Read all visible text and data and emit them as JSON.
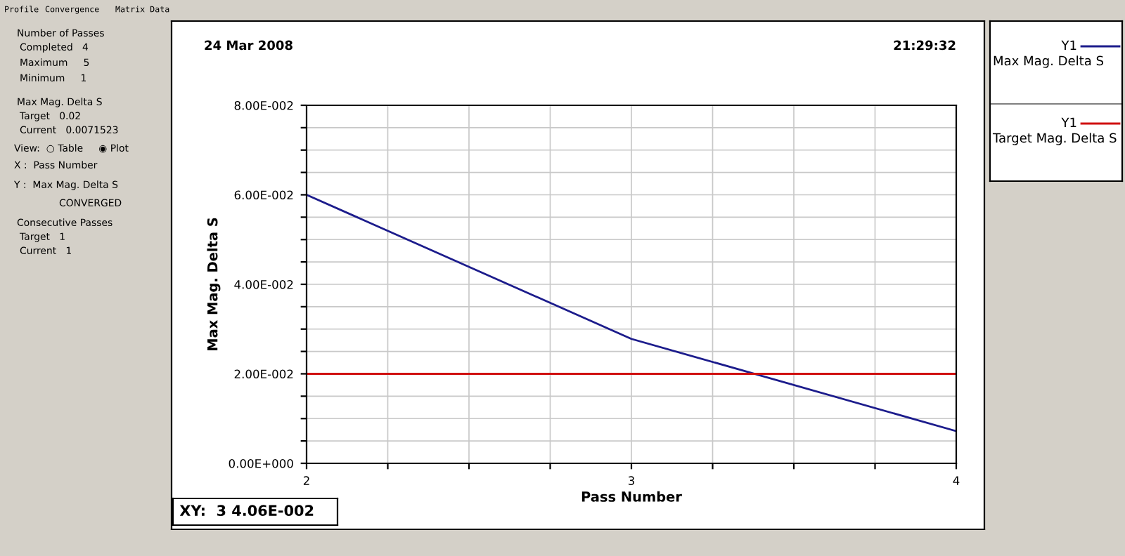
{
  "chart_data": [
    {
      "type": "other",
      "annotations": [
        "Profile",
        "Convergence",
        "Matrix Data",
        "Number of Passes",
        "Completed   4",
        "Maximum     5",
        "Minimum     1",
        "Max Mag. Delta S",
        "Target   0.02",
        "Current   0.0071523",
        "View:  ○ Table     ◉ Plot",
        "X :  Pass Number",
        "Y :  Max Mag. Delta S",
        "CONVERGED",
        "Consecutive Passes",
        "Target   1",
        "Current   1"
      ]
    },
    {
      "type": "line",
      "xlabel": "Pass Number",
      "ylabel": "Max Mag. Delta S",
      "legend_title": "Y1",
      "x": [
        2,
        3,
        4
      ],
      "series": [
        {
          "name": "Max Mag. Delta S",
          "color": "#1c1c8c",
          "values": [
            0.06,
            0.0278,
            0.0072
          ]
        },
        {
          "name": "Target Mag. Delta S",
          "color": "#d01010",
          "values": [
            0.02,
            0.02,
            0.02
          ]
        }
      ],
      "xlim": [
        2,
        4
      ],
      "ylim": [
        0,
        0.08
      ],
      "xticks": [
        2,
        {
          "value": 2.25,
          "label": null
        },
        {
          "value": 2.5,
          "label": null
        },
        {
          "value": 2.75,
          "label": null
        },
        3,
        {
          "value": 3.25,
          "label": null
        },
        {
          "value": 3.5,
          "label": null
        },
        {
          "value": 3.75,
          "label": null
        },
        4
      ],
      "yticks": [
        {
          "value": 0,
          "label": "0.00E+000"
        },
        {
          "value": 0.005,
          "label": null
        },
        {
          "value": 0.01,
          "label": null
        },
        {
          "value": 0.015,
          "label": null
        },
        {
          "value": 0.02,
          "label": "2.00E-002"
        },
        {
          "value": 0.025,
          "label": null
        },
        {
          "value": 0.03,
          "label": null
        },
        {
          "value": 0.035,
          "label": null
        },
        {
          "value": 0.04,
          "label": "4.00E-002"
        },
        {
          "value": 0.045,
          "label": null
        },
        {
          "value": 0.05,
          "label": null
        },
        {
          "value": 0.055,
          "label": null
        },
        {
          "value": 0.06,
          "label": "6.00E-002"
        },
        {
          "value": 0.065,
          "label": null
        },
        {
          "value": 0.07,
          "label": null
        },
        {
          "value": 0.075,
          "label": null
        },
        {
          "value": 0.08,
          "label": "8.00E-002"
        }
      ],
      "grid": true,
      "legend": "right",
      "marker": "none",
      "line_style": "solid",
      "annotations": [
        "24 Mar 2008",
        "21:29:32",
        "XY:  3 4.06E-002"
      ]
    }
  ]
}
